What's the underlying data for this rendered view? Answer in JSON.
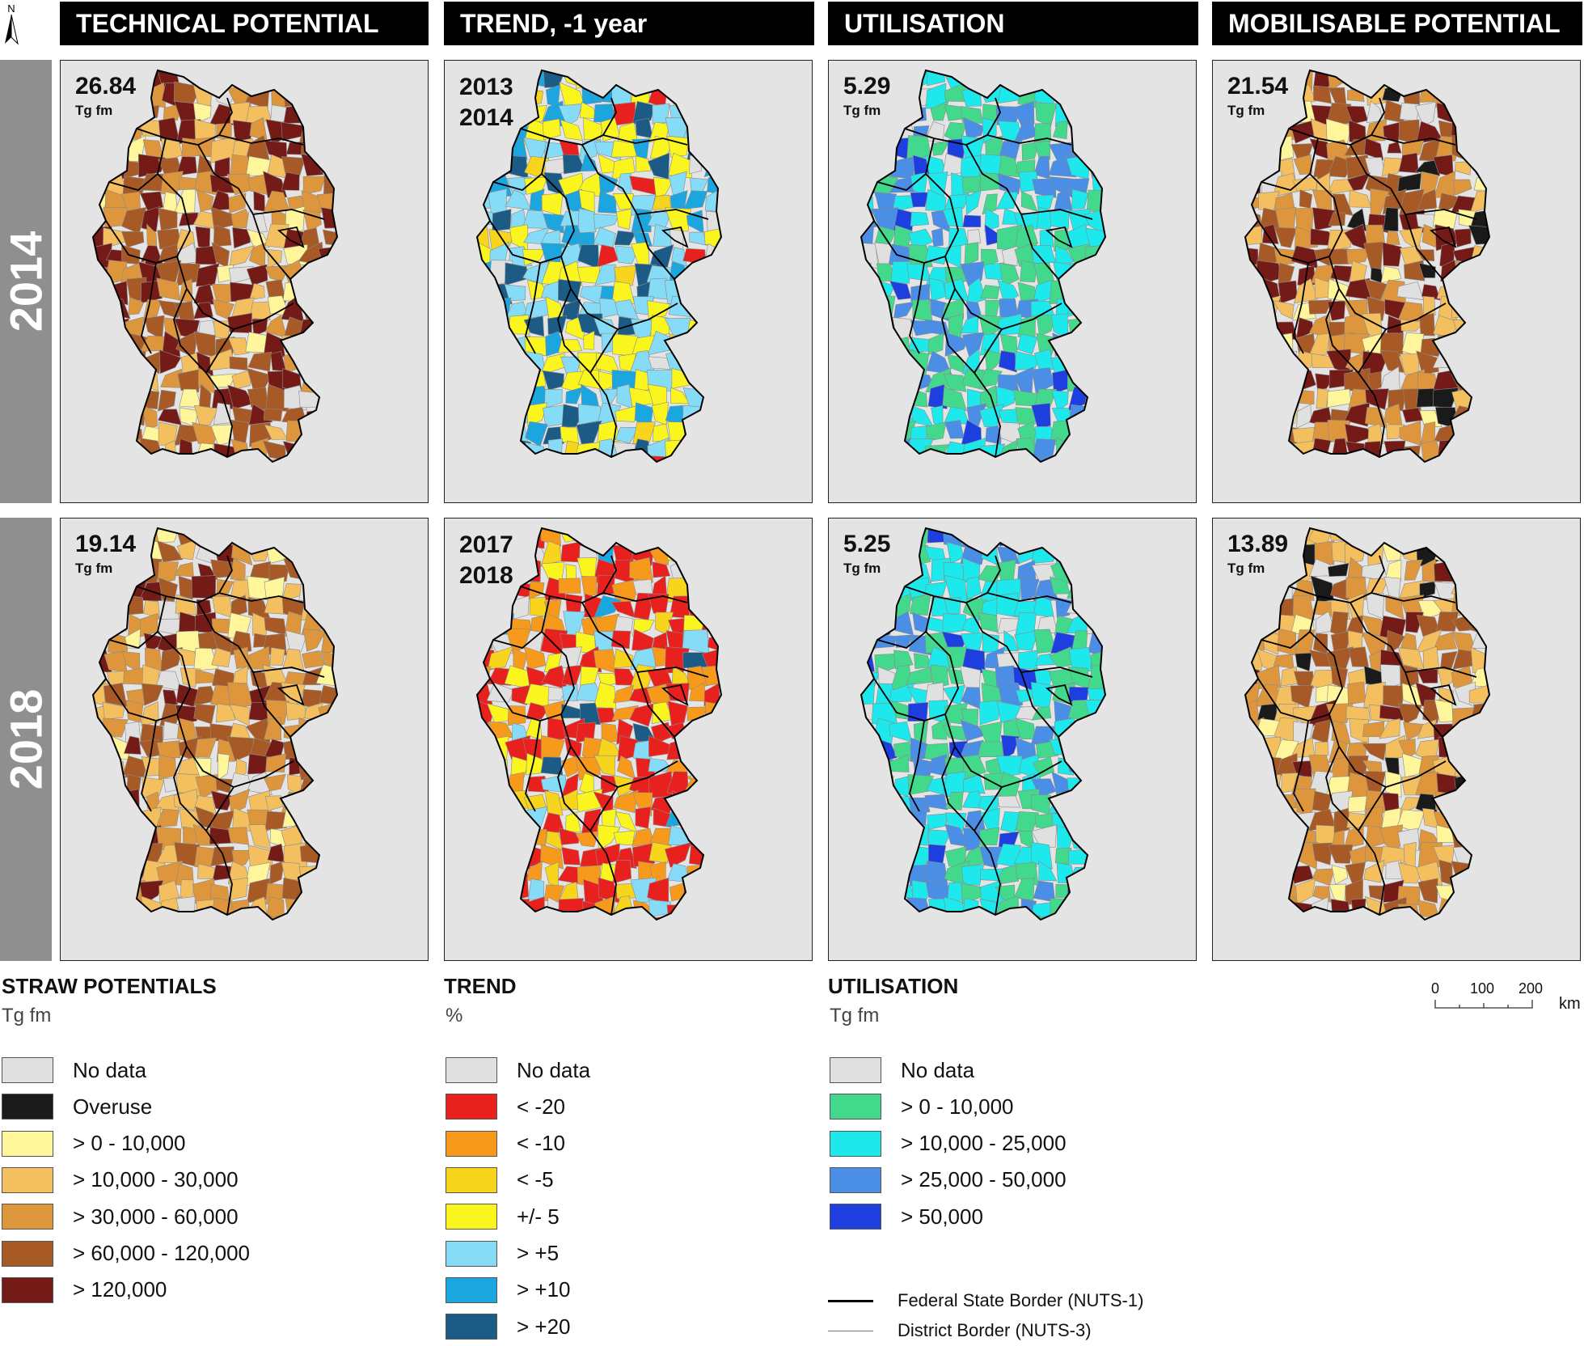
{
  "north_label": "N",
  "columns": [
    {
      "title": "TECHNICAL POTENTIAL"
    },
    {
      "title": "TREND, -1 year"
    },
    {
      "title": "UTILISATION"
    },
    {
      "title": "MOBILISABLE POTENTIAL"
    }
  ],
  "rows": [
    {
      "year": "2014",
      "panels": [
        {
          "value": "26.84",
          "unit": "Tg fm",
          "palette": "potential",
          "weights": [
            0.06,
            0,
            0.05,
            0.12,
            0.22,
            0.25,
            0.3
          ],
          "seed": 11
        },
        {
          "years": [
            "2013",
            "2014"
          ],
          "palette": "trend",
          "weights": [
            0.03,
            0.03,
            0,
            0.03,
            0.35,
            0.28,
            0.18,
            0.13
          ],
          "seed": 23
        },
        {
          "value": "5.29",
          "unit": "Tg fm",
          "palette": "utilisation",
          "weights": [
            0.04,
            0.3,
            0.45,
            0.15,
            0.06
          ],
          "seed": 37
        },
        {
          "value": "21.54",
          "unit": "Tg fm",
          "palette": "potential",
          "weights": [
            0.06,
            0.05,
            0.07,
            0.14,
            0.22,
            0.24,
            0.22
          ],
          "seed": 41
        }
      ]
    },
    {
      "year": "2018",
      "panels": [
        {
          "value": "19.14",
          "unit": "Tg fm",
          "palette": "potential",
          "weights": [
            0.07,
            0,
            0.06,
            0.2,
            0.3,
            0.25,
            0.12
          ],
          "seed": 53
        },
        {
          "years": [
            "2017",
            "2018"
          ],
          "palette": "trend",
          "weights": [
            0.05,
            0.4,
            0.25,
            0.08,
            0.12,
            0.06,
            0.02,
            0.02
          ],
          "seed": 67
        },
        {
          "value": "5.25",
          "unit": "Tg fm",
          "palette": "utilisation",
          "weights": [
            0.04,
            0.32,
            0.42,
            0.17,
            0.05
          ],
          "seed": 71
        },
        {
          "value": "13.89",
          "unit": "Tg fm",
          "palette": "potential",
          "weights": [
            0.07,
            0.04,
            0.08,
            0.25,
            0.3,
            0.18,
            0.08
          ],
          "seed": 83
        }
      ]
    }
  ],
  "legends": {
    "potential": {
      "title": "STRAW POTENTIALS",
      "unit": "Tg fm",
      "items": [
        {
          "label": "No data",
          "color": "#e0e0e0"
        },
        {
          "label": "Overuse",
          "color": "#1a1a1a"
        },
        {
          "label": "> 0 - 10,000",
          "color": "#fff59a"
        },
        {
          "label": "> 10,000 - 30,000",
          "color": "#f4bf5e"
        },
        {
          "label": "> 30,000 - 60,000",
          "color": "#dd963c"
        },
        {
          "label": "> 60,000 - 120,000",
          "color": "#a85a26"
        },
        {
          "label": "> 120,000",
          "color": "#751b17"
        }
      ]
    },
    "trend": {
      "title": "TREND",
      "unit": "%",
      "items": [
        {
          "label": "No data",
          "color": "#e0e0e0"
        },
        {
          "label": "< -20",
          "color": "#e8201e"
        },
        {
          "label": "< -10",
          "color": "#f79a1c"
        },
        {
          "label": "< -5",
          "color": "#f6d51c"
        },
        {
          "label": "+/- 5",
          "color": "#fbf51f"
        },
        {
          "label": "> +5",
          "color": "#86dcf6"
        },
        {
          "label": "> +10",
          "color": "#1ca6df"
        },
        {
          "label": "> +20",
          "color": "#1b5b85"
        }
      ]
    },
    "utilisation": {
      "title": "UTILISATION",
      "unit": "Tg fm",
      "items": [
        {
          "label": "No data",
          "color": "#e0e0e0"
        },
        {
          "label": "> 0 - 10,000",
          "color": "#43d98d"
        },
        {
          "label": "> 10,000 - 25,000",
          "color": "#1de8ec"
        },
        {
          "label": "> 25,000 - 50,000",
          "color": "#4a8ee6"
        },
        {
          "label": "> 50,000",
          "color": "#1d3fe0"
        }
      ]
    }
  },
  "scale_bar": {
    "ticks": [
      "0",
      "100",
      "200"
    ],
    "unit": "km"
  },
  "border_legend": [
    {
      "label": "Federal State Border (NUTS-1)",
      "style": "thick"
    },
    {
      "label": "District Border (NUTS-3)",
      "style": "thin"
    }
  ]
}
